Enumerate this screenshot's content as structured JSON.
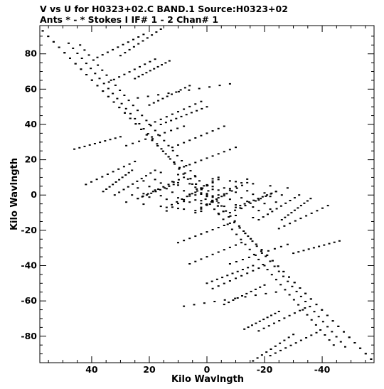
{
  "chart_data": {
    "type": "scatter",
    "title_line1": "V vs U for H0323+02.C BAND.1   Source:H0323+02",
    "title_line2": "Ants * - *     Stokes I   IF# 1 - 2   Chan# 1",
    "xlabel": "Kilo Wavlngth",
    "ylabel": "Kilo Wavlngth",
    "xlim": [
      58,
      -58
    ],
    "ylim": [
      -95,
      96
    ],
    "xticks": [
      40,
      20,
      0,
      -20,
      -40
    ],
    "yticks": [
      80,
      60,
      40,
      20,
      0,
      -20,
      -40,
      -60,
      -80
    ],
    "grid": false,
    "point_color": "#000000",
    "spokes": [
      {
        "name": "",
        "start": [
          30,
          79
        ],
        "end": [
          16,
          94
        ]
      },
      {
        "name": "",
        "start": [
          25,
          66
        ],
        "end": [
          13,
          76
        ]
      },
      {
        "name": "",
        "start": [
          20,
          51
        ],
        "end": [
          6,
          62
        ]
      },
      {
        "name": "",
        "start": [
          16,
          40
        ],
        "end": [
          0,
          50
        ]
      },
      {
        "name": "",
        "start": [
          12,
          27
        ],
        "end": [
          -6,
          39
        ]
      },
      {
        "name": "",
        "start": [
          8,
          16
        ],
        "end": [
          -10,
          27
        ]
      },
      {
        "name": "",
        "start": [
          36,
          2
        ],
        "end": [
          26,
          14
        ]
      },
      {
        "name": "",
        "start": [
          24,
          -2
        ],
        "end": [
          10,
          7
        ]
      },
      {
        "name": "",
        "start": [
          14,
          -7
        ],
        "end": [
          -2,
          7
        ]
      },
      {
        "name": "",
        "start": [
          4,
          -10
        ],
        "end": [
          -14,
          9
        ]
      },
      {
        "name": "",
        "start": [
          -8,
          -10
        ],
        "end": [
          -24,
          2
        ]
      },
      {
        "name": "",
        "start": [
          -18,
          -14
        ],
        "end": [
          -32,
          0
        ]
      },
      {
        "name": "",
        "start": [
          -25,
          -19
        ],
        "end": [
          -42,
          -6
        ]
      },
      {
        "name": "",
        "start": [
          -30,
          -33
        ],
        "end": [
          -46,
          -26
        ]
      },
      {
        "name": "",
        "start": [
          -8,
          -39
        ],
        "end": [
          -28,
          -28
        ]
      },
      {
        "name": "",
        "start": [
          -2,
          -53
        ],
        "end": [
          -20,
          -40
        ]
      },
      {
        "name": "",
        "start": [
          8,
          -63
        ],
        "end": [
          -24,
          -55
        ]
      },
      {
        "name": "",
        "start": [
          -18,
          -77
        ],
        "end": [
          -34,
          -64
        ]
      },
      {
        "name": "",
        "start": [
          -22,
          -91
        ],
        "end": [
          -38,
          -78
        ]
      }
    ],
    "diagonals": [
      {
        "start": [
          57,
          93
        ],
        "end": [
          -57,
          -93
        ]
      },
      {
        "start": [
          44,
          85
        ],
        "end": [
          -48,
          -86
        ]
      }
    ],
    "clusters": [
      {
        "center": [
          10,
          2
        ],
        "du": 6,
        "dv": 4,
        "nu": 5,
        "nv": 4
      },
      {
        "center": [
          -10,
          -2
        ],
        "du": 6,
        "dv": 4,
        "nu": 5,
        "nv": 4
      }
    ]
  }
}
